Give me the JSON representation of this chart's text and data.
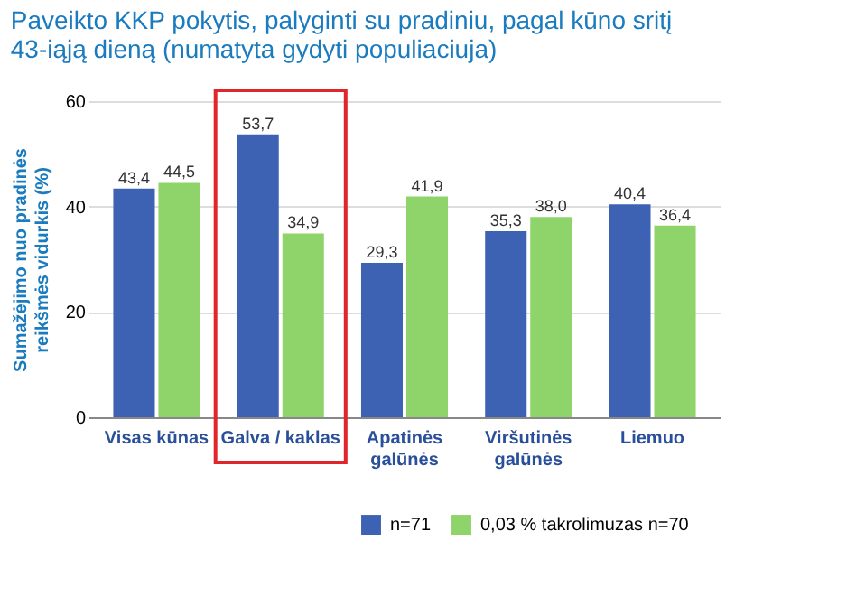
{
  "chart_data": {
    "type": "bar",
    "title": [
      "Paveikto KKP pokytis, palyginti su pradiniu, pagal kūno sritį",
      "43-iąją dieną (numatyta gydyti populiaciuja)"
    ],
    "ylabel": [
      "Sumažėjimo nuo pradinės",
      "reikšmės vidurkis (%)"
    ],
    "categories": [
      "Visas kūnas",
      "Galva / kaklas",
      "Apatinės\ngalūnės",
      "Viršutinės\ngalūnės",
      "Liemuo"
    ],
    "series": [
      {
        "name": "n=71",
        "color": "#3d62b4",
        "values": [
          43.4,
          53.7,
          29.3,
          35.3,
          40.4
        ],
        "value_labels": [
          "43,4",
          "53,7",
          "29,3",
          "35,3",
          "40,4"
        ]
      },
      {
        "name": "0,03 % takrolimuzas  n=70",
        "color": "#8fd46a",
        "values": [
          44.5,
          34.9,
          41.9,
          38.0,
          36.4
        ],
        "value_labels": [
          "44,5",
          "34,9",
          "41,9",
          "38,0",
          "36,4"
        ]
      }
    ],
    "ylim": [
      0,
      60
    ],
    "yticks": [
      0,
      20,
      40,
      60
    ],
    "grid": "y",
    "legend": "bottom right"
  }
}
